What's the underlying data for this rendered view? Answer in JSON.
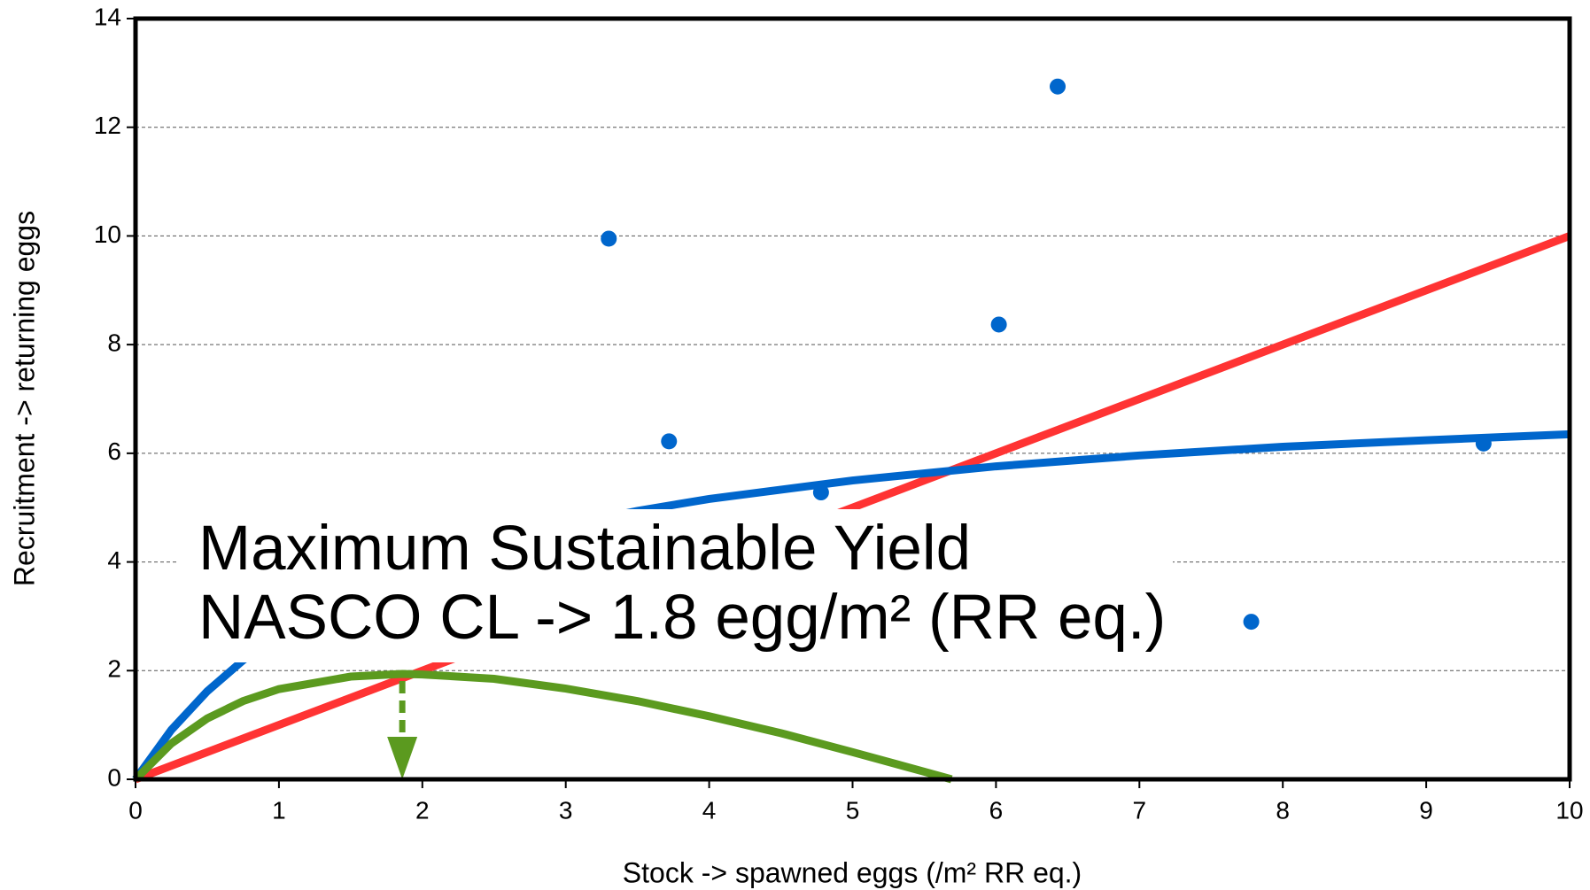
{
  "chart_data": {
    "type": "scatter",
    "x_label": "Stock -> spawned eggs  (/m² RR eq.)",
    "y_label": "Recruitment -> returning eggs",
    "xlim": [
      0,
      10
    ],
    "xticks": [
      0,
      1,
      2,
      3,
      4,
      5,
      6,
      7,
      8,
      9,
      10
    ],
    "ylim": [
      0,
      14
    ],
    "yticks": [
      0,
      2,
      4,
      6,
      8,
      10,
      12,
      14
    ],
    "grid": true,
    "series": [
      {
        "type": "line",
        "color": "#ff3333",
        "x": [
          0,
          10
        ],
        "values": [
          0,
          10
        ]
      },
      {
        "type": "line",
        "color": "#0066cc",
        "x": [
          0,
          0.25,
          0.5,
          0.75,
          1,
          1.5,
          2,
          2.5,
          3,
          3.5,
          4,
          5,
          6,
          7,
          8,
          9,
          10
        ],
        "values": [
          0,
          0.91,
          1.62,
          2.19,
          2.66,
          3.39,
          3.93,
          4.35,
          4.67,
          4.94,
          5.16,
          5.5,
          5.76,
          5.96,
          6.12,
          6.24,
          6.35
        ]
      },
      {
        "type": "line",
        "color": "#5b9a1f",
        "x": [
          0,
          0.25,
          0.5,
          0.75,
          1,
          1.5,
          1.86,
          2,
          2.5,
          3,
          3.5,
          4,
          4.5,
          5,
          5.5,
          5.69
        ],
        "values": [
          0,
          0.66,
          1.12,
          1.44,
          1.66,
          1.89,
          1.94,
          1.93,
          1.85,
          1.67,
          1.44,
          1.16,
          0.85,
          0.5,
          0.14,
          0
        ]
      },
      {
        "type": "scatter",
        "color": "#0066cc",
        "x": [
          3.3,
          3.72,
          4.78,
          6.02,
          6.43,
          7.78,
          9.4
        ],
        "values": [
          9.95,
          6.22,
          5.28,
          8.37,
          12.75,
          2.9,
          6.18
        ]
      }
    ],
    "annotation": {
      "lines": [
        "Maximum Sustainable Yield",
        "NASCO CL -> 1.8 egg/m² (RR eq.)"
      ],
      "color": "#5b9a1f",
      "arrow": {
        "x": 1.86,
        "y": 1.94
      }
    }
  }
}
